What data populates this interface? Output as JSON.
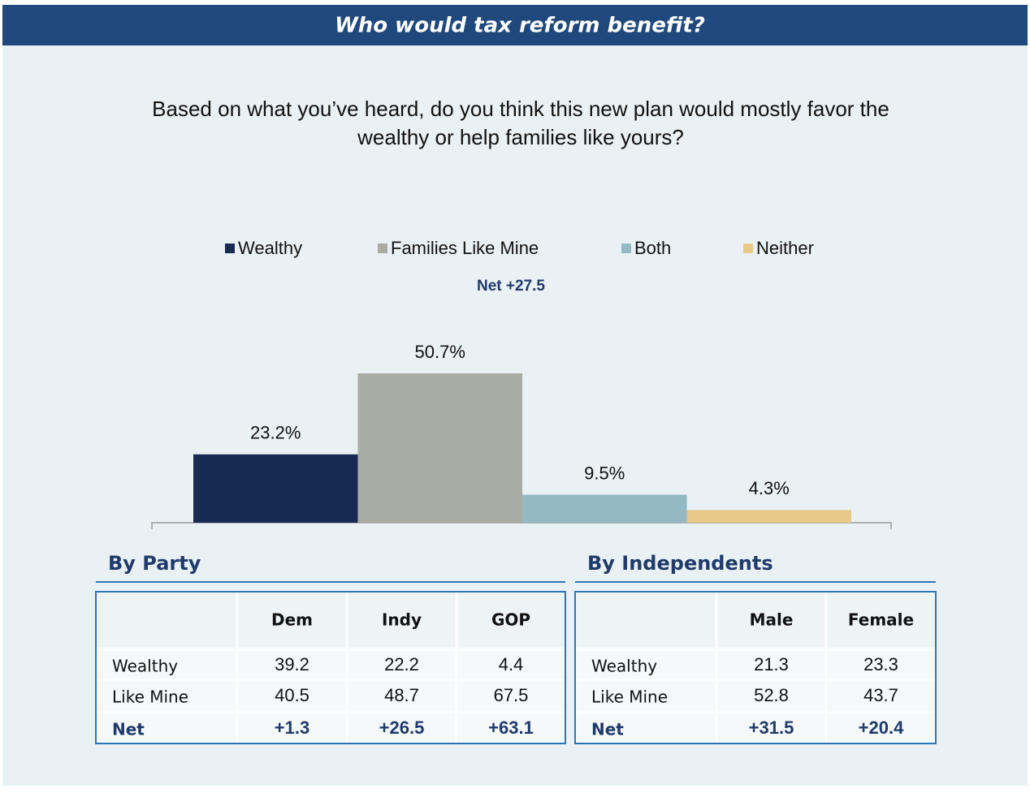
{
  "chart_data": {
    "type": "bar",
    "title": "Who would tax reform benefit?",
    "subtitle": [
      "Based on what you’ve heard, do you think this new plan would mostly favor the",
      "wealthy or help families like yours?"
    ],
    "categories": [
      "Wealthy",
      "Families Like Mine",
      "Both",
      "Neither"
    ],
    "values": [
      23.2,
      50.7,
      9.5,
      4.3
    ],
    "value_labels": [
      "23.2%",
      "50.7%",
      "9.5%",
      "4.3%"
    ],
    "colors": [
      "#172b52",
      "#a8aca2",
      "#93b9c4",
      "#e8c987"
    ],
    "annotation": "Net +27.5"
  },
  "tables": [
    {
      "title": "By Party",
      "columns": [
        "Dem",
        "Indy",
        "GOP"
      ],
      "rows": [
        [
          "Wealthy",
          "39.2",
          "22.2",
          "4.4"
        ],
        [
          "Like Mine",
          "40.5",
          "48.7",
          "67.5"
        ],
        [
          "Net",
          "+1.3",
          "+26.5",
          "+63.1"
        ]
      ]
    },
    {
      "title": "By Independents",
      "columns": [
        "Male",
        "Female"
      ],
      "rows": [
        [
          "Wealthy",
          "21.3",
          "23.3"
        ],
        [
          "Like Mine",
          "52.8",
          "43.7"
        ],
        [
          "Net",
          "+31.5",
          "+20.4"
        ]
      ]
    }
  ]
}
